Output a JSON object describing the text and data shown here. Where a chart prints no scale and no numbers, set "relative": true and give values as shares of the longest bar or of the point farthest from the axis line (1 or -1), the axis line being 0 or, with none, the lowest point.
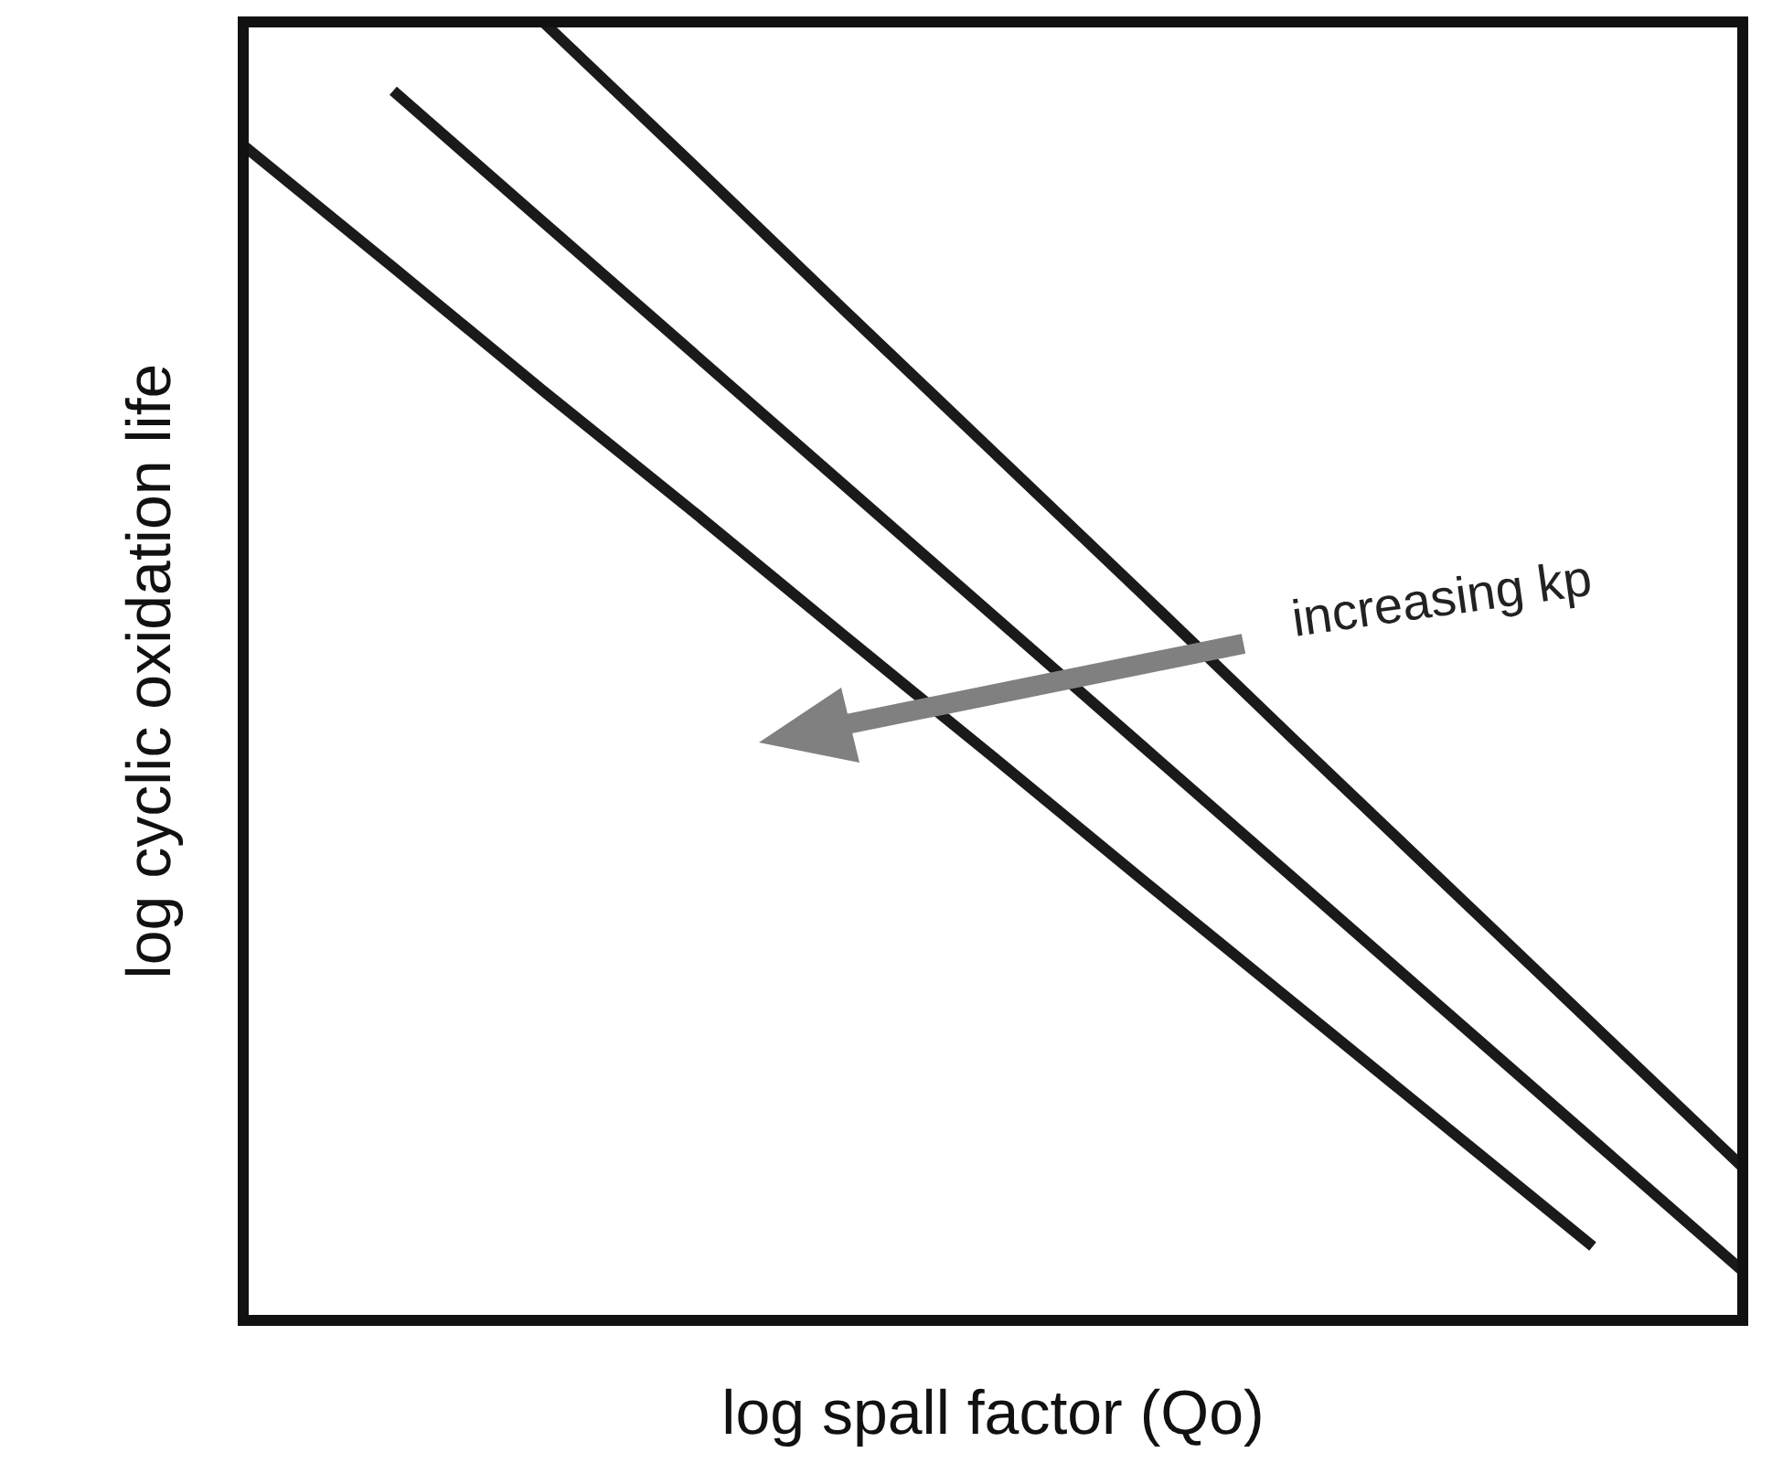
{
  "chart_data": {
    "type": "line",
    "relative": true,
    "xlabel": "log spall factor (Qo)",
    "ylabel": "log  cyclic oxidation life",
    "categories": [
      null,
      null,
      null,
      null,
      null,
      null,
      null,
      null,
      null,
      null,
      null
    ],
    "series": [
      {
        "color": "#1a1a1a",
        "values": [
          0.905,
          0.811,
          0.716,
          0.623,
          0.528,
          0.434,
          0.339,
          0.245,
          0.151,
          0.057,
          null
        ]
      },
      {
        "color": "#1a1a1a",
        "values": [
          null,
          0.947,
          0.846,
          0.745,
          0.644,
          0.543,
          0.442,
          0.341,
          0.24,
          0.139,
          0.038
        ]
      },
      {
        "color": "#1a1a1a",
        "values": [
          null,
          null,
          1,
          0.89,
          0.779,
          0.669,
          0.559,
          0.448,
          0.338,
          0.228,
          0.118
        ]
      }
    ],
    "annotations": [
      "increasing kp"
    ],
    "legend": false,
    "marker": "none",
    "line_style": "solid"
  }
}
